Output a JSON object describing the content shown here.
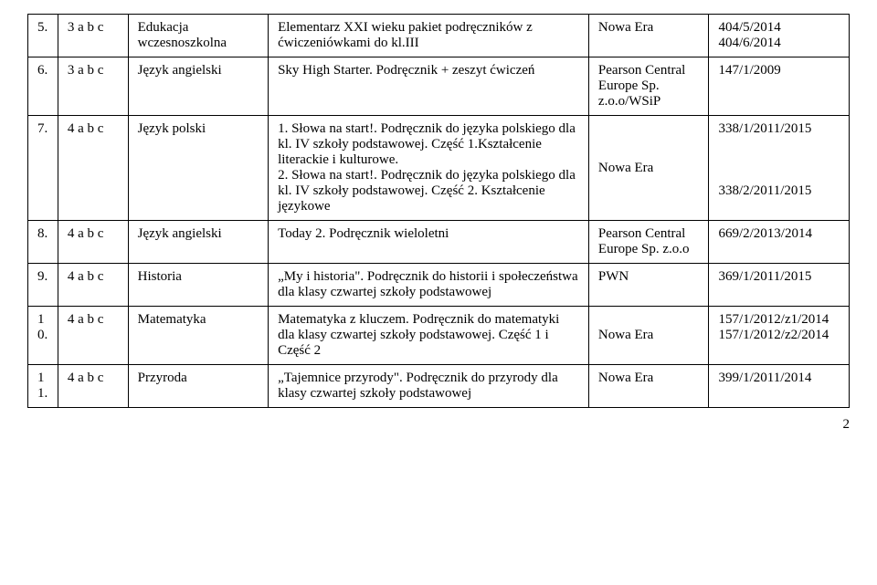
{
  "rows": [
    {
      "num": "5.",
      "class": "3 a b c",
      "subject": "Edukacja wczesnoszkolna",
      "title": "Elementarz XXI wieku pakiet podręczników z ćwiczeniówkami do kl.III",
      "publisher": "Nowa Era",
      "code": "404/5/2014\n404/6/2014"
    },
    {
      "num": "6.",
      "class": "3 a b c",
      "subject": "Język angielski",
      "title": "Sky High Starter. Podręcznik + zeszyt ćwiczeń",
      "publisher": "Pearson Central Europe Sp. z.o.o/WSiP",
      "code": "147/1/2009"
    },
    {
      "num": "7.",
      "class": "4 a b c",
      "subject": "Język polski",
      "title": "1. Słowa na start!. Podręcznik do języka polskiego dla kl. IV szkoły podstawowej. Część 1.Kształcenie literackie i kulturowe.\n2. Słowa na start!. Podręcznik do języka polskiego dla kl. IV szkoły podstawowej. Część 2. Kształcenie językowe",
      "publisher": "Nowa Era",
      "code": "338/1/2011/2015\n\n\n\n338/2/2011/2015"
    },
    {
      "num": "8.",
      "class": "4 a b c",
      "subject": "Język angielski",
      "title": "Today 2. Podręcznik  wieloletni",
      "publisher": "Pearson Central Europe Sp. z.o.o",
      "code": "669/2/2013/2014"
    },
    {
      "num": "9.",
      "class": "4 a b  c",
      "subject": "Historia",
      "title": "„My i historia\". Podręcznik do historii i społeczeństwa dla klasy czwartej szkoły podstawowej",
      "publisher": "PWN",
      "code": "369/1/2011/2015"
    },
    {
      "num": "10.",
      "class": "4 a b c",
      "subject": "Matematyka",
      "title": "Matematyka z kluczem. Podręcznik do matematyki dla klasy czwartej szkoły podstawowej. Część 1 i Część 2",
      "publisher": "Nowa Era",
      "code": "157/1/2012/z1/2014\n157/1/2012/z2/2014"
    },
    {
      "num": "11.",
      "class": "4 a b c",
      "subject": "Przyroda",
      "title": "„Tajemnice przyrody\". Podręcznik do przyrody dla klasy czwartej szkoły podstawowej",
      "publisher": "Nowa Era",
      "code": "399/1/2011/2014"
    }
  ],
  "pageNumber": "2"
}
